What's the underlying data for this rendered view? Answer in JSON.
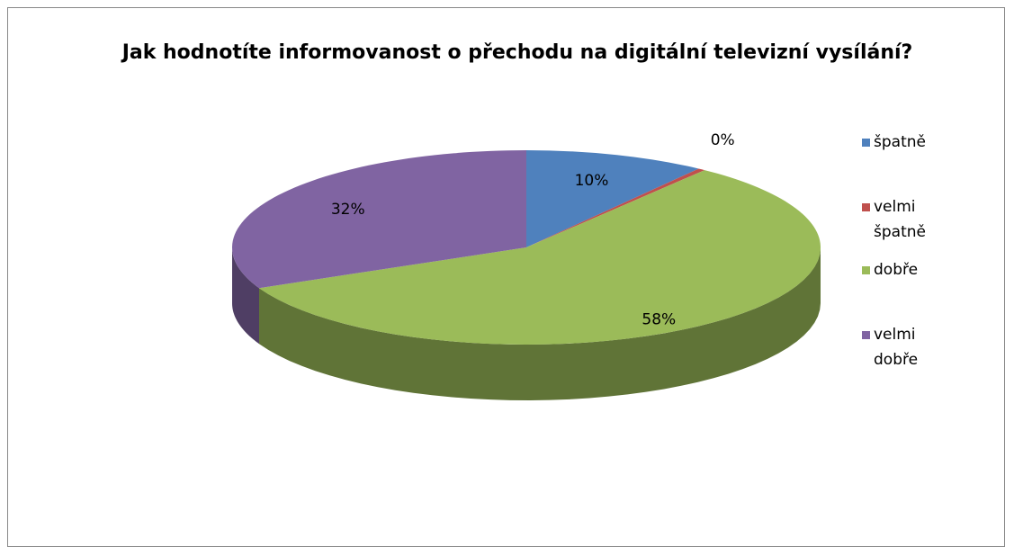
{
  "chart_data": {
    "type": "pie",
    "title": "Jak hodnotíte informovanost o přechodu na digitální televizní vysílání?",
    "categories": [
      "špatně",
      "velmi špatně",
      "dobře",
      "velmi dobře"
    ],
    "values": [
      10,
      0.4,
      58,
      32
    ],
    "value_labels": [
      "10%",
      "0%",
      "58%",
      "32%"
    ],
    "colors": [
      "#4f81bd",
      "#c0504d",
      "#9bbb59",
      "#8064a2"
    ],
    "legend": "right"
  }
}
